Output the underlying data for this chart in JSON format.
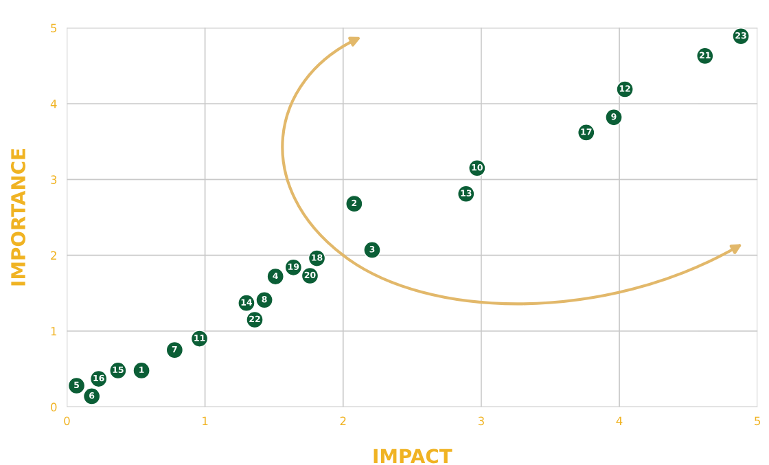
{
  "chart_data": {
    "type": "scatter",
    "xlabel": "IMPACT",
    "ylabel": "IMPORTANCE",
    "xlim": [
      0,
      5
    ],
    "ylim": [
      0,
      5
    ],
    "xticks": [
      0,
      1,
      2,
      3,
      4,
      5
    ],
    "yticks": [
      0,
      1,
      2,
      3,
      4,
      5
    ],
    "grid": true,
    "marker": "circle",
    "series": [
      {
        "color": "#0b5e36",
        "x": [
          0.54,
          2.08,
          2.21,
          1.51,
          0.07,
          0.18,
          0.78,
          1.43,
          3.96,
          2.97,
          0.96,
          4.04,
          2.89,
          1.3,
          0.37,
          0.23,
          3.76,
          1.81,
          1.64,
          1.76,
          4.62,
          1.36,
          4.88
        ],
        "values": [
          0.48,
          2.68,
          2.07,
          1.72,
          0.28,
          0.14,
          0.75,
          1.41,
          3.82,
          3.15,
          0.9,
          4.19,
          2.81,
          1.37,
          0.48,
          0.37,
          3.62,
          1.96,
          1.84,
          1.73,
          4.63,
          1.15,
          4.89
        ]
      }
    ],
    "annotations": [
      {
        "text": "1",
        "x": 0.54,
        "y": 0.48
      },
      {
        "text": "2",
        "x": 2.08,
        "y": 2.68
      },
      {
        "text": "3",
        "x": 2.21,
        "y": 2.07
      },
      {
        "text": "4",
        "x": 1.51,
        "y": 1.72
      },
      {
        "text": "5",
        "x": 0.07,
        "y": 0.28
      },
      {
        "text": "6",
        "x": 0.18,
        "y": 0.14
      },
      {
        "text": "7",
        "x": 0.78,
        "y": 0.75
      },
      {
        "text": "8",
        "x": 1.43,
        "y": 1.41
      },
      {
        "text": "9",
        "x": 3.96,
        "y": 3.82
      },
      {
        "text": "10",
        "x": 2.97,
        "y": 3.15
      },
      {
        "text": "11",
        "x": 0.96,
        "y": 0.9
      },
      {
        "text": "12",
        "x": 4.04,
        "y": 4.19
      },
      {
        "text": "13",
        "x": 2.89,
        "y": 2.81
      },
      {
        "text": "14",
        "x": 1.3,
        "y": 1.37
      },
      {
        "text": "15",
        "x": 0.37,
        "y": 0.48
      },
      {
        "text": "16",
        "x": 0.23,
        "y": 0.37
      },
      {
        "text": "17",
        "x": 3.76,
        "y": 3.62
      },
      {
        "text": "18",
        "x": 1.81,
        "y": 1.96
      },
      {
        "text": "19",
        "x": 1.64,
        "y": 1.84
      },
      {
        "text": "20",
        "x": 1.76,
        "y": 1.73
      },
      {
        "text": "21",
        "x": 4.62,
        "y": 4.63
      },
      {
        "text": "22",
        "x": 1.36,
        "y": 1.15
      },
      {
        "text": "23",
        "x": 4.88,
        "y": 4.89
      }
    ]
  }
}
